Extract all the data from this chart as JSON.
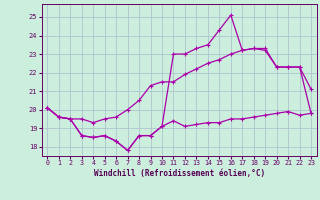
{
  "xlabel": "Windchill (Refroidissement éolien,°C)",
  "background_color": "#cceedd",
  "grid_color": "#aabbcc",
  "line_color": "#aa00aa",
  "xlim": [
    -0.5,
    23.5
  ],
  "ylim": [
    17.5,
    25.7
  ],
  "yticks": [
    18,
    19,
    20,
    21,
    22,
    23,
    24,
    25
  ],
  "xticks": [
    0,
    1,
    2,
    3,
    4,
    5,
    6,
    7,
    8,
    9,
    10,
    11,
    12,
    13,
    14,
    15,
    16,
    17,
    18,
    19,
    20,
    21,
    22,
    23
  ],
  "line1_x": [
    0,
    1,
    2,
    3,
    4,
    5,
    6,
    7,
    8,
    9,
    10,
    11,
    12,
    13,
    14,
    15,
    16,
    17,
    18,
    19,
    20,
    21,
    22,
    23
  ],
  "line1_y": [
    20.1,
    19.6,
    19.5,
    18.6,
    18.5,
    18.6,
    18.3,
    17.8,
    18.6,
    18.6,
    19.1,
    19.4,
    19.1,
    19.2,
    19.3,
    19.3,
    19.5,
    19.5,
    19.6,
    19.7,
    19.8,
    19.9,
    19.7,
    19.8
  ],
  "line2_x": [
    0,
    1,
    2,
    3,
    4,
    5,
    6,
    7,
    8,
    9,
    10,
    11,
    12,
    13,
    14,
    15,
    16,
    17,
    18,
    19,
    20,
    21,
    22,
    23
  ],
  "line2_y": [
    20.1,
    19.6,
    19.5,
    19.5,
    19.3,
    19.5,
    19.6,
    20.0,
    20.5,
    21.3,
    21.5,
    21.5,
    21.9,
    22.2,
    22.5,
    22.7,
    23.0,
    23.2,
    23.3,
    23.2,
    22.3,
    22.3,
    22.3,
    19.8
  ],
  "line3_x": [
    0,
    1,
    2,
    3,
    4,
    5,
    6,
    7,
    8,
    9,
    10,
    11,
    12,
    13,
    14,
    15,
    16,
    17,
    18,
    19,
    20,
    21,
    22,
    23
  ],
  "line3_y": [
    20.1,
    19.6,
    19.5,
    18.6,
    18.5,
    18.6,
    18.3,
    17.8,
    18.6,
    18.6,
    19.1,
    23.0,
    23.0,
    23.3,
    23.5,
    24.3,
    25.1,
    23.2,
    23.3,
    23.3,
    22.3,
    22.3,
    22.3,
    21.1
  ]
}
